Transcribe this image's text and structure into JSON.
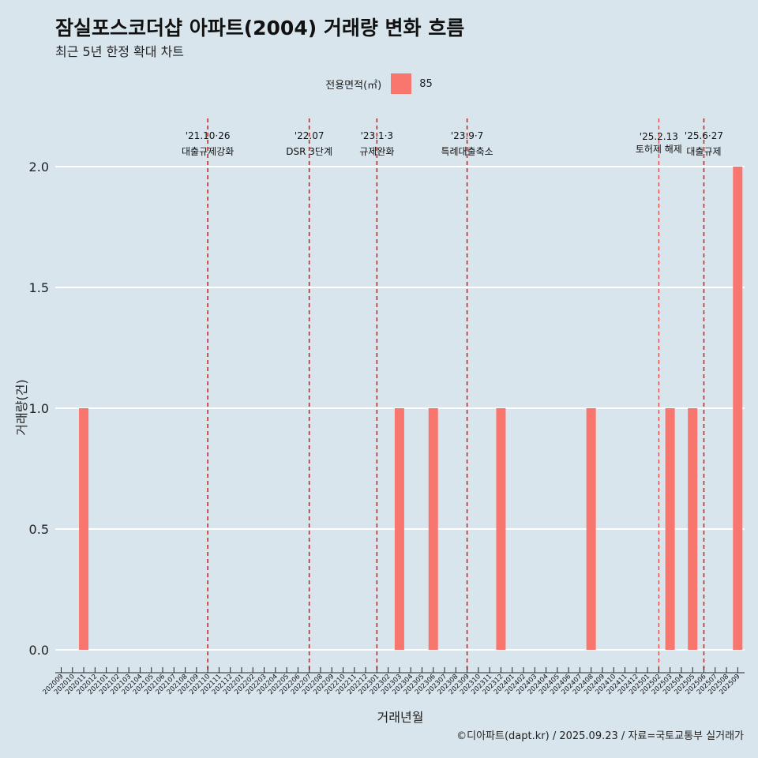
{
  "title": "잠실포스코더샵 아파트(2004) 거래량 변화 흐름",
  "subtitle": "최근 5년 한정 확대 차트",
  "caption": "©디아파트(dapt.kr) / 2025.09.23 / 자료=국토교통부 실거래가",
  "legend": {
    "title": "전용면적(㎡)",
    "entries": [
      {
        "label": "85",
        "color": "#f8766d"
      }
    ]
  },
  "chart_data": {
    "type": "bar",
    "xlabel": "거래년월",
    "ylabel": "거래량(건)",
    "ylim": [
      0,
      2.0
    ],
    "yticks": [
      0.0,
      0.5,
      1.0,
      1.5,
      2.0
    ],
    "ytick_labels": [
      "0.0",
      "0.5",
      "1.0",
      "1.5",
      "2.0"
    ],
    "categories": [
      "202009",
      "202010",
      "202011",
      "202012",
      "202101",
      "202102",
      "202103",
      "202104",
      "202105",
      "202106",
      "202107",
      "202108",
      "202109",
      "202110",
      "202111",
      "202112",
      "202201",
      "202202",
      "202203",
      "202204",
      "202205",
      "202206",
      "202207",
      "202208",
      "202209",
      "202210",
      "202211",
      "202212",
      "202301",
      "202302",
      "202303",
      "202304",
      "202305",
      "202306",
      "202307",
      "202308",
      "202309",
      "202310",
      "202311",
      "202312",
      "202401",
      "202402",
      "202403",
      "202404",
      "202405",
      "202406",
      "202407",
      "202408",
      "202409",
      "202410",
      "202411",
      "202412",
      "202501",
      "202502",
      "202503",
      "202504",
      "202505",
      "202506",
      "202507",
      "202508",
      "202509"
    ],
    "series": [
      {
        "name": "85",
        "color": "#f8766d",
        "values": [
          0,
          0,
          1,
          0,
          0,
          0,
          0,
          0,
          0,
          0,
          0,
          0,
          0,
          0,
          0,
          0,
          0,
          0,
          0,
          0,
          0,
          0,
          0,
          0,
          0,
          0,
          0,
          0,
          0,
          0,
          1,
          0,
          0,
          1,
          0,
          0,
          0,
          0,
          0,
          1,
          0,
          0,
          0,
          0,
          0,
          0,
          0,
          1,
          0,
          0,
          0,
          0,
          0,
          0,
          1,
          0,
          1,
          0,
          0,
          0,
          2
        ]
      }
    ],
    "events": [
      {
        "date": "'21.10·26",
        "label": "대출규제강화",
        "x": "202110",
        "size": "normal"
      },
      {
        "date": "'22.07",
        "label": "DSR 3단계",
        "x": "202207",
        "size": "normal"
      },
      {
        "date": "'23.1·3",
        "label": "규제완화",
        "x": "202301",
        "size": "normal"
      },
      {
        "date": "'23.9·7",
        "label": "특례대출축소",
        "x": "202309",
        "size": "normal"
      },
      {
        "date": "'25.2.13",
        "label": "토허제 해제",
        "x": "202502",
        "size": "small"
      },
      {
        "date": "'25.6·27",
        "label": "대출규제",
        "x": "202506",
        "size": "normal"
      }
    ],
    "grid": true,
    "legend_position": "top"
  }
}
